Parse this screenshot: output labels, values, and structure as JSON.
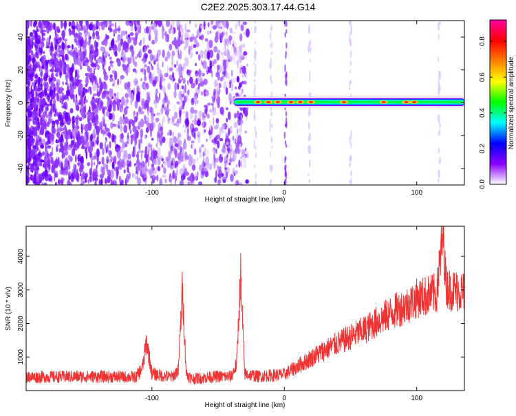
{
  "title": "C2E2.2025.303.17.44.G14",
  "chart_data": [
    {
      "type": "heatmap",
      "name": "spectrogram",
      "xlabel": "Height of straight line (km)",
      "ylabel": "Frequency (Hz)",
      "xlim": [
        -195,
        136
      ],
      "ylim": [
        -50,
        50
      ],
      "xticks": [
        -100,
        0,
        100
      ],
      "xtick_labels": [
        "-100",
        "0",
        "100"
      ],
      "yticks": [
        -40,
        -20,
        0,
        20,
        40
      ],
      "ytick_labels": [
        "-40",
        "-20",
        "0",
        "20",
        "40"
      ],
      "colorbar": {
        "label": "Normalized spectral amplitude",
        "range": [
          0,
          0.92
        ],
        "ticks": [
          0,
          0.2,
          0.4,
          0.6,
          0.8
        ],
        "tick_labels": [
          "0.0",
          "0.2",
          "0.4",
          "0.6",
          "0.8"
        ],
        "colors": [
          "#ffffff",
          "#8b00ff",
          "#0000ff",
          "#00ffff",
          "#00ff00",
          "#ffff00",
          "#ff8000",
          "#ff0000",
          "#ff00a0"
        ]
      },
      "ridge": {
        "x_start": -38,
        "x_end": 136,
        "frequency": 0,
        "peak_amplitude": 0.9
      }
    },
    {
      "type": "line",
      "name": "snr",
      "xlabel": "Height of straight line (km)",
      "ylabel": "SNR (10 * v/v)",
      "xlim": [
        -195,
        136
      ],
      "ylim": [
        0,
        4900
      ],
      "xticks": [
        -100,
        0,
        100
      ],
      "xtick_labels": [
        "-100",
        "0",
        "100"
      ],
      "yticks": [
        1000,
        2000,
        3000,
        4000
      ],
      "ytick_labels": [
        "1000",
        "2000",
        "3000",
        "4000"
      ],
      "color": "#f03232",
      "series": [
        {
          "name": "SNR",
          "x": [
            -195,
            -150,
            -112,
            -107,
            -104,
            -100,
            -85,
            -80,
            -77,
            -74,
            -70,
            -50,
            -40,
            -36,
            -33,
            -30,
            -20,
            0,
            30,
            60,
            80,
            95,
            100,
            115,
            120,
            122,
            125,
            136
          ],
          "y": [
            400,
            420,
            400,
            700,
            1480,
            500,
            400,
            600,
            3050,
            500,
            350,
            420,
            420,
            800,
            3480,
            500,
            420,
            480,
            1200,
            1800,
            2300,
            2600,
            2750,
            2900,
            4700,
            3200,
            3000,
            2950
          ]
        }
      ]
    }
  ]
}
